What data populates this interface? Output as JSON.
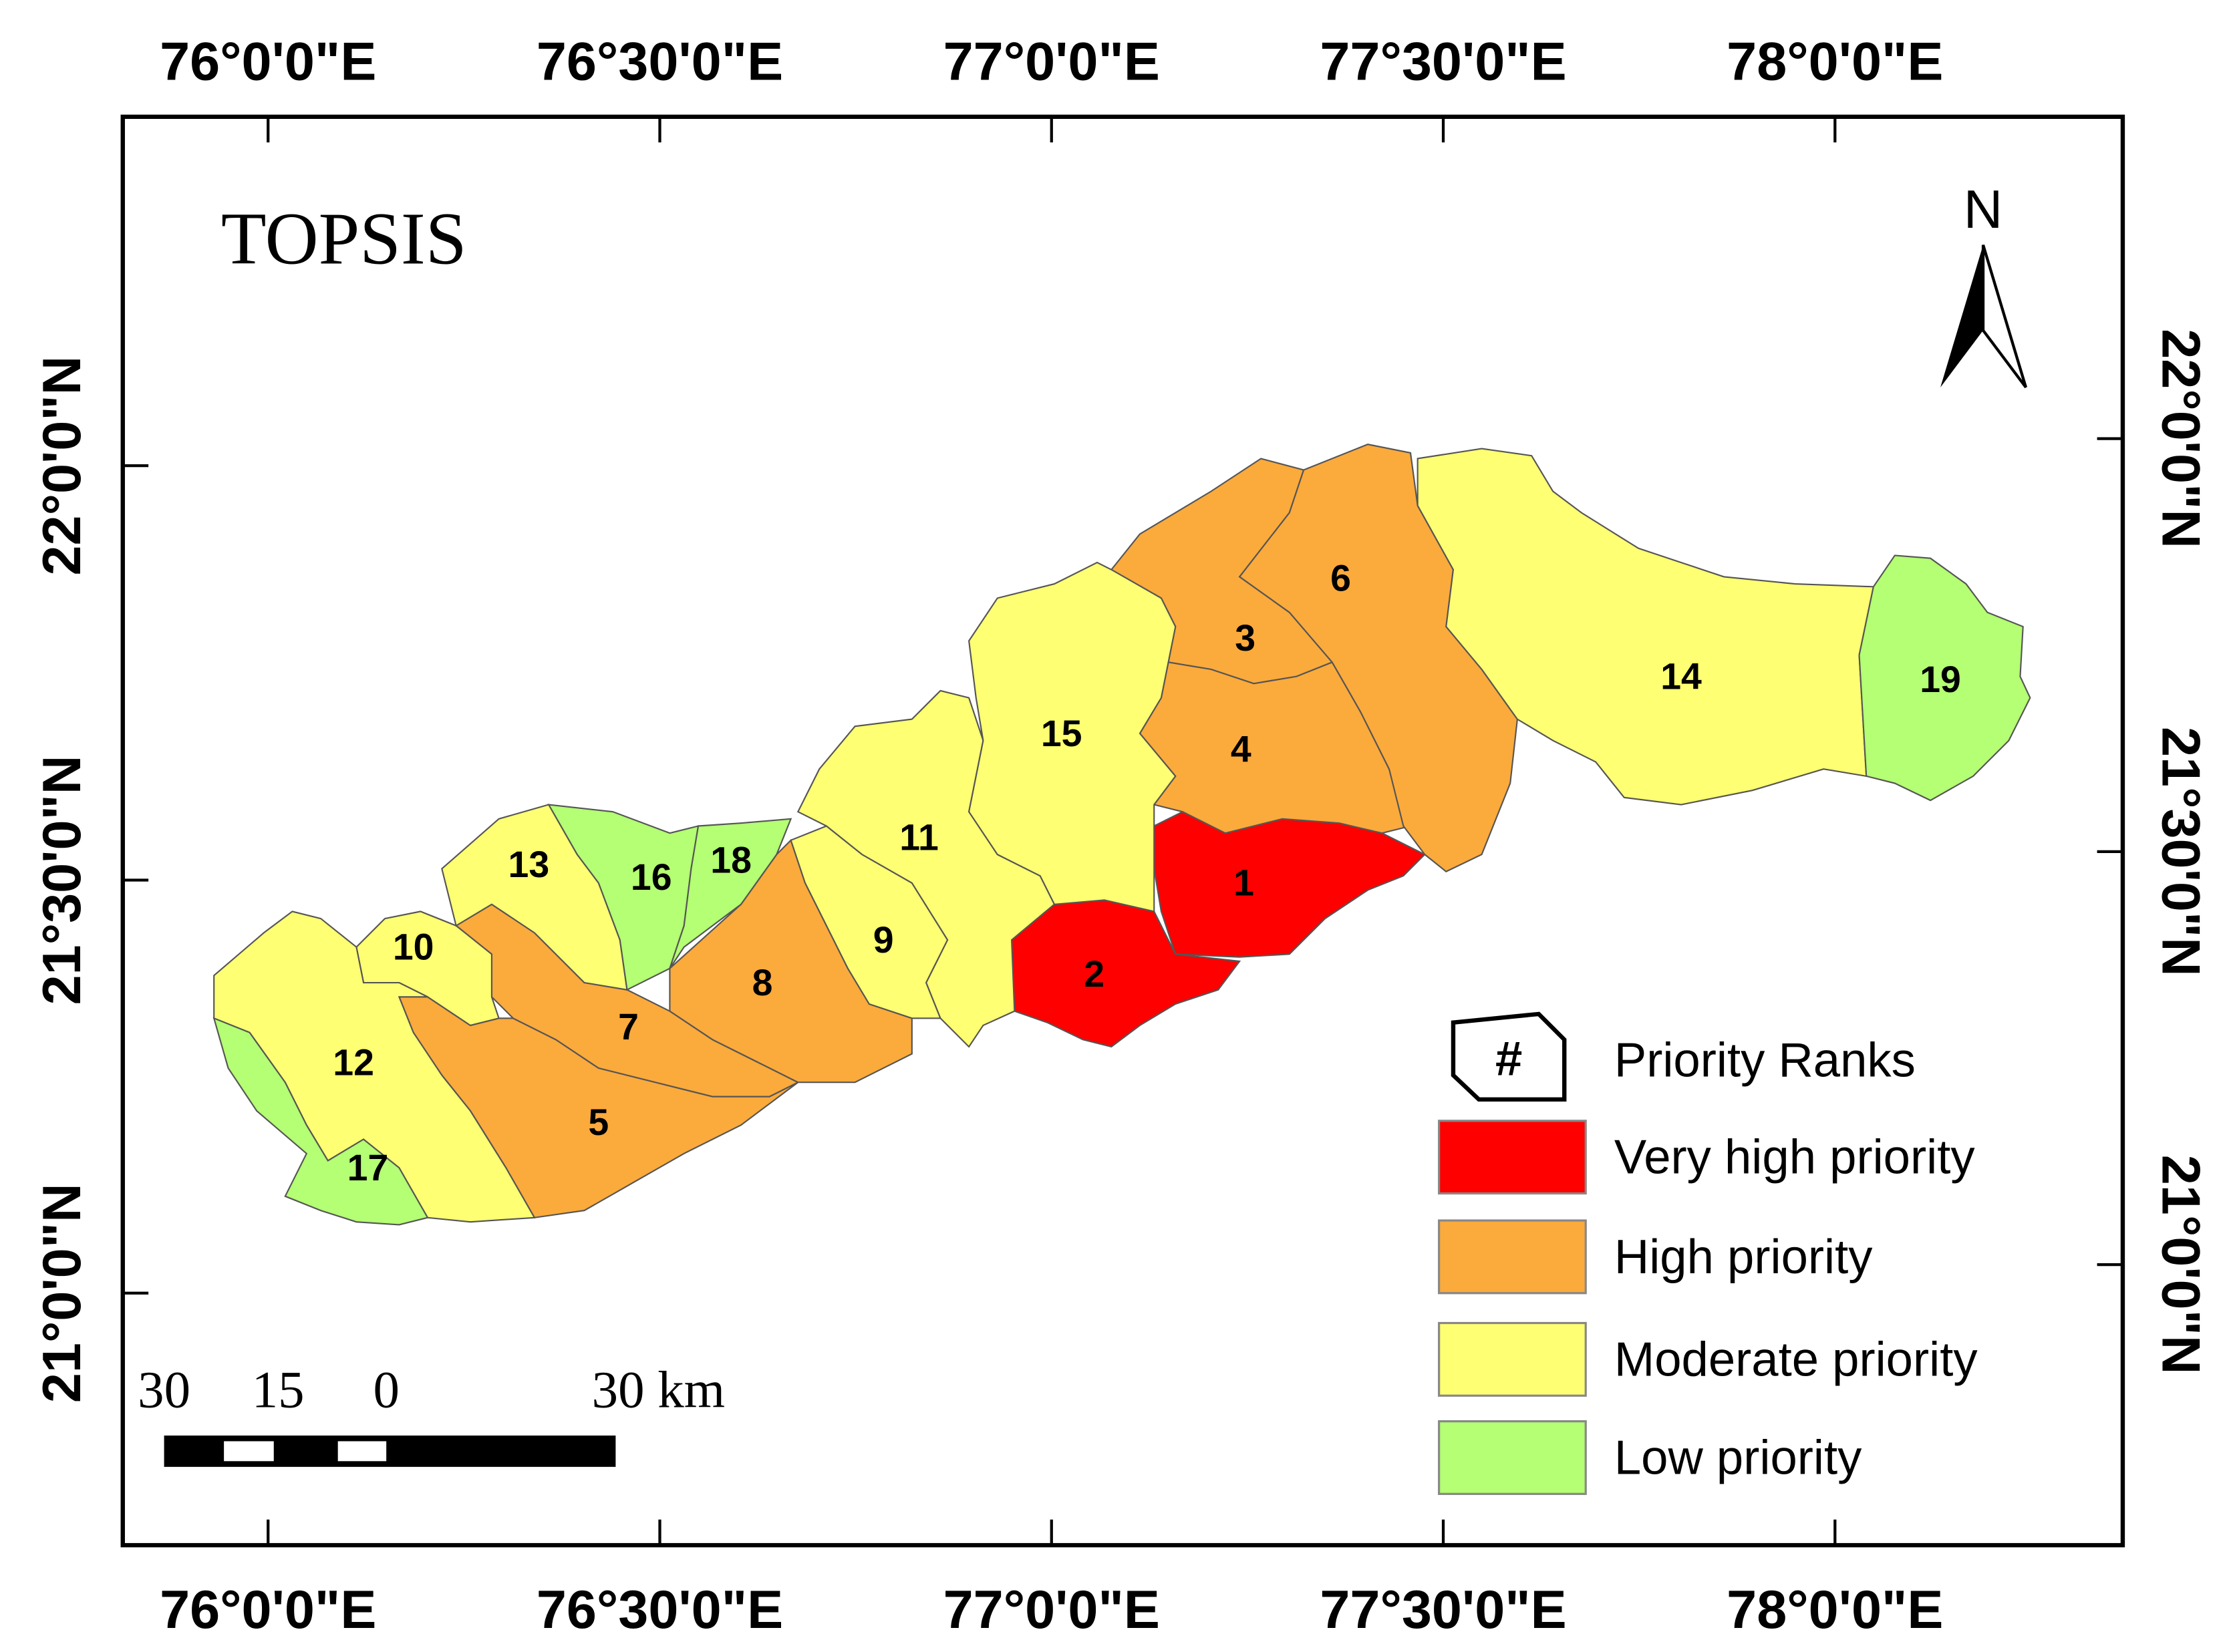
{
  "title": "TOPSIS",
  "north": "N",
  "axes": {
    "top": [
      "76°0'0\"E",
      "76°30'0\"E",
      "77°0'0\"E",
      "77°30'0\"E",
      "78°0'0\"E"
    ],
    "bottom": [
      "76°0'0\"E",
      "76°30'0\"E",
      "77°0'0\"E",
      "77°30'0\"E",
      "78°0'0\"E"
    ],
    "left": [
      "22°0'0\"N",
      "21°30'0\"N",
      "21°0'0\"N"
    ],
    "right": [
      "22°0'0\"N",
      "21°30'0\"N",
      "21°0'0\"N"
    ]
  },
  "scale_bar": [
    "30",
    "15",
    "0",
    "30 km"
  ],
  "legend": {
    "symbol": "#",
    "title": "Priority Ranks",
    "items": [
      {
        "label": "Very high priority",
        "color": "#ff0000"
      },
      {
        "label": "High priority",
        "color": "#fbaa3c"
      },
      {
        "label": "Moderate priority",
        "color": "#ffff73"
      },
      {
        "label": "Low priority",
        "color": "#b4ff73"
      }
    ]
  },
  "subwatersheds": [
    {
      "label": "1",
      "class": 0
    },
    {
      "label": "2",
      "class": 0
    },
    {
      "label": "3",
      "class": 1
    },
    {
      "label": "4",
      "class": 1
    },
    {
      "label": "5",
      "class": 1
    },
    {
      "label": "6",
      "class": 1
    },
    {
      "label": "7",
      "class": 1
    },
    {
      "label": "8",
      "class": 1
    },
    {
      "label": "9",
      "class": 2
    },
    {
      "label": "10",
      "class": 2
    },
    {
      "label": "11",
      "class": 2
    },
    {
      "label": "12",
      "class": 2
    },
    {
      "label": "13",
      "class": 2
    },
    {
      "label": "14",
      "class": 2
    },
    {
      "label": "15",
      "class": 2
    },
    {
      "label": "16",
      "class": 3
    },
    {
      "label": "17",
      "class": 3
    },
    {
      "label": "18",
      "class": 3
    },
    {
      "label": "19",
      "class": 3
    }
  ]
}
